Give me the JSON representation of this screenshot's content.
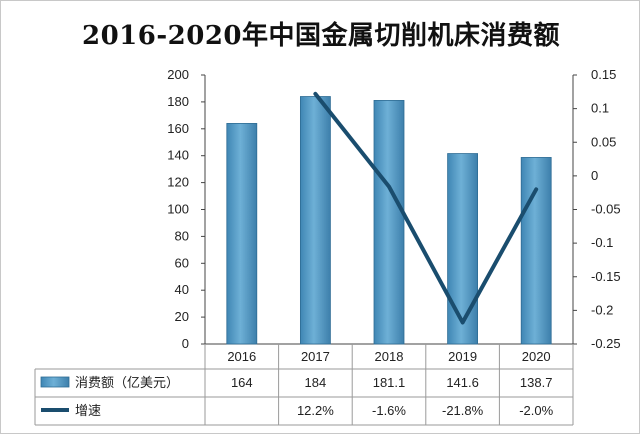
{
  "chart_data": {
    "type": "bar",
    "title": "2016-2020年中国金属切削机床消费额",
    "categories": [
      "2016",
      "2017",
      "2018",
      "2019",
      "2020"
    ],
    "series": [
      {
        "name": "消费额（亿美元）",
        "type": "bar",
        "axis": "left",
        "values": [
          164,
          184,
          181.1,
          141.6,
          138.7
        ],
        "labels": [
          "164",
          "184",
          "181.1",
          "141.6",
          "138.7"
        ],
        "color": "#5a9ec8"
      },
      {
        "name": "增速",
        "type": "line",
        "axis": "right",
        "values": [
          null,
          0.122,
          -0.016,
          -0.218,
          -0.02
        ],
        "labels": [
          "",
          "12.2%",
          "-1.6%",
          "-21.8%",
          "-2.0%"
        ],
        "color": "#1a4d6e"
      }
    ],
    "y_left": {
      "min": 0,
      "max": 200,
      "ticks": [
        "0",
        "20",
        "40",
        "60",
        "80",
        "100",
        "120",
        "140",
        "160",
        "180",
        "200"
      ]
    },
    "y_right": {
      "min": -0.25,
      "max": 0.15,
      "ticks": [
        "-0.25",
        "-0.2",
        "-0.15",
        "-0.1",
        "-0.05",
        "0",
        "0.05",
        "0.1",
        "0.15"
      ]
    },
    "grid": false,
    "legend": "data-table"
  }
}
